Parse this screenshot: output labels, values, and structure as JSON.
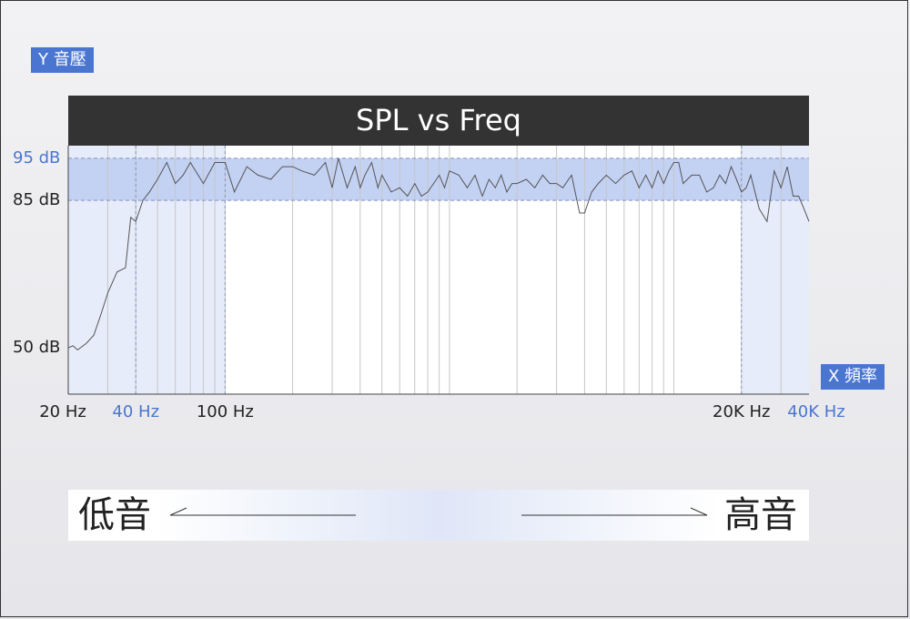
{
  "y_tag": "Y 音壓",
  "x_tag": "X 頻率",
  "chart_data": {
    "type": "line",
    "title": "SPL vs Freq",
    "y_ticks": [
      {
        "label": "95 dB",
        "value": 95,
        "highlight": true
      },
      {
        "label": "85 dB",
        "value": 85,
        "highlight": false
      },
      {
        "label": "50 dB",
        "value": 50,
        "highlight": false
      }
    ],
    "x_ticks": [
      {
        "label": "20 Hz",
        "value": 20,
        "highlight": false
      },
      {
        "label": "40 Hz",
        "value": 40,
        "highlight": true
      },
      {
        "label": "100 Hz",
        "value": 100,
        "highlight": false
      },
      {
        "label": "20K Hz",
        "value": 20000,
        "highlight": false
      },
      {
        "label": "40K Hz",
        "value": 40000,
        "highlight": true
      }
    ],
    "x_scale": "log",
    "xlim": [
      20,
      40000
    ],
    "ylim": [
      39,
      98
    ],
    "highlight_band_db": [
      85,
      95
    ],
    "low_region_hz": [
      20,
      100
    ],
    "high_region_hz": [
      20000,
      40000
    ],
    "series": [
      {
        "x": [
          20,
          21,
          22,
          24,
          26,
          28,
          30,
          33,
          36,
          38,
          40,
          43,
          46,
          50,
          55,
          60,
          65,
          70,
          80,
          90,
          100,
          110,
          125,
          140,
          160,
          180,
          200,
          220,
          250,
          280,
          300,
          320,
          350,
          380,
          400,
          420,
          450,
          480,
          500,
          550,
          600,
          650,
          700,
          750,
          800,
          850,
          900,
          950,
          1000,
          1100,
          1200,
          1300,
          1400,
          1500,
          1600,
          1700,
          1800,
          1900,
          2000,
          2200,
          2400,
          2600,
          2800,
          3000,
          3200,
          3500,
          3800,
          4000,
          4300,
          4600,
          5000,
          5500,
          6000,
          6500,
          7000,
          7500,
          8000,
          8500,
          9000,
          9500,
          10000,
          10500,
          11000,
          12000,
          13000,
          14000,
          15000,
          16000,
          17000,
          18000,
          19000,
          20000,
          21000,
          22000,
          24000,
          26000,
          28000,
          30000,
          32000,
          34000,
          36000,
          38000,
          40000
        ],
        "y": [
          50,
          50.5,
          49.5,
          51,
          53,
          58,
          63,
          68,
          69,
          81,
          80,
          85,
          87,
          90,
          94,
          89,
          91,
          94,
          89,
          94,
          94,
          87,
          93,
          91,
          90,
          93,
          93,
          92,
          91,
          94,
          88,
          95,
          88,
          93,
          88,
          91,
          94,
          88,
          91,
          87,
          88,
          86,
          89,
          86,
          87,
          89,
          91,
          88,
          92,
          91,
          88,
          91,
          86,
          90,
          88,
          91,
          87,
          89,
          89,
          90,
          88,
          91,
          89,
          89,
          88,
          91,
          82,
          82,
          87,
          89,
          91,
          89,
          91,
          92,
          88,
          91,
          88,
          92,
          89,
          92,
          94,
          94,
          89,
          91,
          91,
          87,
          88,
          91,
          89,
          93,
          90,
          87,
          88,
          91,
          83,
          80,
          92,
          88,
          93,
          86,
          86,
          83,
          80
        ]
      }
    ]
  },
  "bottom": {
    "low_label": "低音",
    "high_label": "高音"
  }
}
